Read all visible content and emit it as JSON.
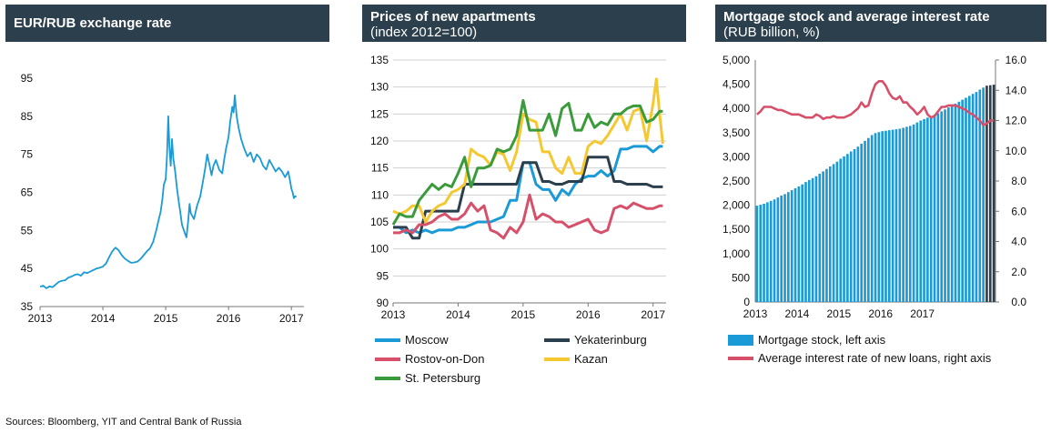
{
  "source": "Sources: Bloomberg, YIT and Central Bank of Russia",
  "charts": [
    {
      "title": "EUR/RUB exchange rate",
      "subtitle": "",
      "chart_data": {
        "type": "line",
        "title": "EUR/RUB exchange rate",
        "x_ticks": [
          "2013",
          "2014",
          "2015",
          "2016",
          "2017"
        ],
        "y_ticks": [
          35,
          45,
          55,
          65,
          75,
          85,
          95
        ],
        "ylim": [
          35,
          95
        ],
        "xlim": [
          2013.0,
          2017.2
        ],
        "grid": false,
        "series": [
          {
            "color": "#1a9ad6",
            "x": [
              2013.0,
              2013.05,
              2013.1,
              2013.15,
              2013.2,
              2013.25,
              2013.3,
              2013.35,
              2013.4,
              2013.45,
              2013.5,
              2013.55,
              2013.6,
              2013.65,
              2013.7,
              2013.75,
              2013.8,
              2013.85,
              2013.9,
              2013.95,
              2014.0,
              2014.05,
              2014.1,
              2014.15,
              2014.2,
              2014.25,
              2014.3,
              2014.35,
              2014.4,
              2014.45,
              2014.5,
              2014.55,
              2014.6,
              2014.65,
              2014.7,
              2014.75,
              2014.8,
              2014.85,
              2014.88,
              2014.92,
              2014.95,
              2014.97,
              2015.0,
              2015.02,
              2015.04,
              2015.06,
              2015.08,
              2015.1,
              2015.12,
              2015.15,
              2015.18,
              2015.2,
              2015.23,
              2015.26,
              2015.3,
              2015.33,
              2015.36,
              2015.38,
              2015.4,
              2015.45,
              2015.5,
              2015.55,
              2015.6,
              2015.63,
              2015.66,
              2015.7,
              2015.73,
              2015.76,
              2015.8,
              2015.85,
              2015.9,
              2015.93,
              2015.96,
              2016.0,
              2016.03,
              2016.06,
              2016.08,
              2016.1,
              2016.13,
              2016.16,
              2016.2,
              2016.25,
              2016.3,
              2016.35,
              2016.4,
              2016.45,
              2016.5,
              2016.55,
              2016.6,
              2016.65,
              2016.7,
              2016.75,
              2016.8,
              2016.85,
              2016.9,
              2016.95,
              2016.98,
              2017.0,
              2017.02,
              2017.04,
              2017.06,
              2017.08
            ],
            "y": [
              40.2,
              40.5,
              39.8,
              40.3,
              40.1,
              40.8,
              41.5,
              41.8,
              41.9,
              42.6,
              42.9,
              43.3,
              43.5,
              43.1,
              44.0,
              43.8,
              44.2,
              44.6,
              45.0,
              45.2,
              45.5,
              46.3,
              48.0,
              49.5,
              50.5,
              49.8,
              48.5,
              47.6,
              47.0,
              46.5,
              46.6,
              46.8,
              47.5,
              48.5,
              49.5,
              50.3,
              52.0,
              55.0,
              57.2,
              60.0,
              63.5,
              67.0,
              68.5,
              74.5,
              85.0,
              77.0,
              72.0,
              79.0,
              74.0,
              70.5,
              66.0,
              63.5,
              60.0,
              56.5,
              54.5,
              53.2,
              58.0,
              62.0,
              59.5,
              58.0,
              61.5,
              64.0,
              68.5,
              71.5,
              75.0,
              72.0,
              69.5,
              72.0,
              73.5,
              71.0,
              70.0,
              73.5,
              76.5,
              79.5,
              84.0,
              87.5,
              86.0,
              90.5,
              85.0,
              82.0,
              79.0,
              76.5,
              74.5,
              75.5,
              73.0,
              75.0,
              74.0,
              72.0,
              71.0,
              73.5,
              72.0,
              70.5,
              71.5,
              70.5,
              69.0,
              70.5,
              68.0,
              66.0,
              65.0,
              63.5,
              64.0,
              63.8
            ]
          }
        ]
      }
    },
    {
      "title": "Prices of new apartments",
      "subtitle": "(index 2012=100)",
      "chart_data": {
        "type": "line",
        "title": "Prices of new apartments",
        "subtitle": "(index 2012=100)",
        "x_ticks": [
          "2013",
          "2014",
          "2015",
          "2016",
          "2017"
        ],
        "y_ticks": [
          90,
          95,
          100,
          105,
          110,
          115,
          120,
          125,
          130,
          135
        ],
        "ylim": [
          90,
          135
        ],
        "xlim": [
          2013.0,
          2017.2
        ],
        "grid": true,
        "series": [
          {
            "name": "Moscow",
            "color": "#1a9ad6",
            "x": [
              2013.0,
              2013.1,
              2013.2,
              2013.3,
              2013.4,
              2013.5,
              2013.6,
              2013.7,
              2013.8,
              2013.9,
              2014.0,
              2014.1,
              2014.2,
              2014.3,
              2014.4,
              2014.5,
              2014.6,
              2014.7,
              2014.8,
              2014.9,
              2015.0,
              2015.1,
              2015.2,
              2015.3,
              2015.4,
              2015.5,
              2015.6,
              2015.7,
              2015.8,
              2015.9,
              2016.0,
              2016.1,
              2016.2,
              2016.3,
              2016.4,
              2016.5,
              2016.6,
              2016.7,
              2016.8,
              2016.9,
              2017.0,
              2017.1,
              2017.15
            ],
            "y": [
              104.0,
              104.0,
              103.0,
              103.5,
              103.0,
              103.5,
              103.0,
              103.5,
              103.5,
              103.5,
              104.0,
              104.0,
              104.5,
              105.0,
              105.0,
              105.0,
              105.5,
              106.0,
              109.0,
              109.0,
              116.0,
              116.0,
              112.0,
              111.0,
              111.0,
              109.0,
              111.0,
              110.0,
              112.0,
              113.0,
              113.5,
              113.5,
              114.5,
              113.5,
              114.5,
              118.5,
              118.5,
              119.0,
              119.0,
              119.0,
              118.0,
              119.0,
              119.0
            ]
          },
          {
            "name": "Yekaterinburg",
            "color": "#2b3f4d",
            "x": [
              2013.0,
              2013.1,
              2013.2,
              2013.3,
              2013.4,
              2013.5,
              2013.6,
              2013.7,
              2013.8,
              2013.9,
              2014.0,
              2014.1,
              2014.2,
              2014.3,
              2014.4,
              2014.5,
              2014.6,
              2014.7,
              2014.8,
              2014.9,
              2015.0,
              2015.1,
              2015.2,
              2015.3,
              2015.4,
              2015.5,
              2015.6,
              2015.7,
              2015.8,
              2015.9,
              2016.0,
              2016.1,
              2016.2,
              2016.3,
              2016.4,
              2016.5,
              2016.6,
              2016.7,
              2016.8,
              2016.9,
              2017.0,
              2017.1,
              2017.15
            ],
            "y": [
              104.0,
              104.0,
              104.0,
              102.0,
              102.0,
              107.0,
              107.0,
              107.0,
              107.0,
              107.0,
              107.0,
              112.0,
              112.0,
              112.0,
              112.0,
              112.0,
              112.0,
              112.0,
              112.0,
              112.0,
              116.0,
              116.0,
              116.0,
              112.5,
              112.5,
              112.0,
              112.0,
              112.5,
              112.5,
              112.5,
              117.0,
              117.0,
              117.0,
              117.0,
              112.5,
              112.5,
              112.0,
              112.0,
              112.0,
              112.0,
              111.5,
              111.5,
              111.5
            ]
          },
          {
            "name": "Rostov-on-Don",
            "color": "#d6506a",
            "x": [
              2013.0,
              2013.1,
              2013.2,
              2013.3,
              2013.4,
              2013.5,
              2013.6,
              2013.7,
              2013.8,
              2013.9,
              2014.0,
              2014.1,
              2014.2,
              2014.3,
              2014.4,
              2014.5,
              2014.6,
              2014.7,
              2014.8,
              2014.9,
              2015.0,
              2015.1,
              2015.2,
              2015.3,
              2015.4,
              2015.5,
              2015.6,
              2015.7,
              2015.8,
              2015.9,
              2016.0,
              2016.1,
              2016.2,
              2016.3,
              2016.4,
              2016.5,
              2016.6,
              2016.7,
              2016.8,
              2016.9,
              2017.0,
              2017.1,
              2017.15
            ],
            "y": [
              103.0,
              103.0,
              103.5,
              103.0,
              104.5,
              104.5,
              105.0,
              106.0,
              106.5,
              105.5,
              105.5,
              106.5,
              108.5,
              107.0,
              108.0,
              103.5,
              103.0,
              102.0,
              104.0,
              103.0,
              105.0,
              110.0,
              105.5,
              106.5,
              106.0,
              105.0,
              105.0,
              104.0,
              104.5,
              105.0,
              105.5,
              103.5,
              103.0,
              103.5,
              107.5,
              108.0,
              107.5,
              108.5,
              108.0,
              107.5,
              107.5,
              108.0,
              108.0
            ]
          },
          {
            "name": "Kazan",
            "color": "#f5c832",
            "x": [
              2013.0,
              2013.1,
              2013.2,
              2013.3,
              2013.4,
              2013.5,
              2013.6,
              2013.7,
              2013.8,
              2013.9,
              2014.0,
              2014.1,
              2014.2,
              2014.3,
              2014.4,
              2014.5,
              2014.6,
              2014.7,
              2014.8,
              2014.9,
              2015.0,
              2015.1,
              2015.2,
              2015.3,
              2015.4,
              2015.5,
              2015.6,
              2015.7,
              2015.8,
              2015.9,
              2016.0,
              2016.1,
              2016.2,
              2016.3,
              2016.4,
              2016.5,
              2016.6,
              2016.7,
              2016.8,
              2016.9,
              2017.0,
              2017.05,
              2017.1,
              2017.15
            ],
            "y": [
              107.0,
              106.5,
              107.0,
              108.0,
              108.0,
              105.0,
              107.0,
              108.0,
              108.5,
              110.5,
              111.0,
              112.0,
              118.5,
              117.5,
              117.0,
              115.5,
              118.0,
              117.5,
              114.5,
              118.0,
              125.0,
              124.0,
              123.5,
              118.0,
              118.0,
              115.0,
              114.0,
              117.0,
              114.0,
              114.0,
              119.0,
              120.0,
              119.5,
              121.0,
              123.0,
              125.0,
              122.0,
              125.5,
              126.0,
              120.0,
              127.0,
              131.5,
              125.0,
              119.5
            ]
          },
          {
            "name": "St. Petersburg",
            "color": "#3b9a3a",
            "x": [
              2013.0,
              2013.1,
              2013.2,
              2013.3,
              2013.4,
              2013.5,
              2013.6,
              2013.7,
              2013.8,
              2013.9,
              2014.0,
              2014.1,
              2014.2,
              2014.3,
              2014.4,
              2014.5,
              2014.6,
              2014.7,
              2014.8,
              2014.9,
              2015.0,
              2015.1,
              2015.2,
              2015.3,
              2015.4,
              2015.5,
              2015.6,
              2015.7,
              2015.8,
              2015.9,
              2016.0,
              2016.1,
              2016.2,
              2016.3,
              2016.4,
              2016.5,
              2016.6,
              2016.7,
              2016.8,
              2016.9,
              2017.0,
              2017.1,
              2017.15
            ],
            "y": [
              104.5,
              106.5,
              106.0,
              106.0,
              109.0,
              110.5,
              112.0,
              111.0,
              112.0,
              111.5,
              114.0,
              117.0,
              111.5,
              115.0,
              115.0,
              115.5,
              118.5,
              118.0,
              118.5,
              121.0,
              127.5,
              122.0,
              122.0,
              122.0,
              125.0,
              121.0,
              126.0,
              127.0,
              122.0,
              122.0,
              125.0,
              122.5,
              123.5,
              123.0,
              125.0,
              125.0,
              126.0,
              126.5,
              126.5,
              123.5,
              124.0,
              125.5,
              125.5
            ]
          }
        ]
      }
    },
    {
      "title": "Mortgage stock and average interest rate",
      "subtitle": "(RUB billion, %)",
      "chart_data": {
        "type": "bar",
        "title": "Mortgage stock and average interest rate",
        "subtitle": "(RUB billion, %)",
        "x_ticks": [
          "2013",
          "2014",
          "2015",
          "2016",
          "2017"
        ],
        "y_ticks": [
          "0",
          "500",
          "1,000",
          "1,500",
          "2,000",
          "2,500",
          "3,000",
          "3,500",
          "4,000",
          "4,500",
          "5,000"
        ],
        "y2_ticks": [
          "0.0",
          "2.0",
          "4.0",
          "6.0",
          "8.0",
          "10.0",
          "12.0",
          "14.0",
          "16.0"
        ],
        "ylim": [
          0,
          5000
        ],
        "y2lim": [
          0,
          16
        ],
        "grid": false,
        "legend": [
          "Mortgage stock, left axis",
          "Average interest rate of new loans, right axis"
        ],
        "bar_color": "#1a9ad6",
        "bar_dark_color": "#2b3f4d",
        "line_color": "#d6506a",
        "mortgage_stock": [
          1990,
          2010,
          2030,
          2060,
          2090,
          2120,
          2160,
          2200,
          2230,
          2270,
          2310,
          2350,
          2390,
          2430,
          2480,
          2520,
          2560,
          2600,
          2650,
          2700,
          2750,
          2800,
          2850,
          2900,
          2960,
          3010,
          3060,
          3110,
          3160,
          3210,
          3270,
          3330,
          3390,
          3450,
          3490,
          3510,
          3530,
          3540,
          3550,
          3560,
          3570,
          3580,
          3600,
          3620,
          3640,
          3670,
          3710,
          3750,
          3780,
          3810,
          3840,
          3870,
          3900,
          3940,
          3980,
          4020,
          4060,
          4100,
          4140,
          4180,
          4220,
          4260,
          4300,
          4340,
          4390,
          4430,
          4470,
          4480,
          4490
        ],
        "dark_bars_from": 66,
        "interest_rate": [
          12.4,
          12.6,
          12.9,
          12.9,
          12.9,
          12.8,
          12.7,
          12.7,
          12.6,
          12.5,
          12.4,
          12.4,
          12.4,
          12.3,
          12.2,
          12.2,
          12.2,
          12.4,
          12.3,
          12.1,
          12.2,
          12.2,
          12.3,
          12.2,
          12.2,
          12.2,
          12.3,
          12.4,
          12.6,
          12.8,
          13.2,
          12.9,
          13.0,
          13.8,
          14.4,
          14.6,
          14.6,
          14.3,
          13.8,
          13.5,
          13.4,
          13.6,
          13.2,
          13.2,
          12.9,
          12.7,
          12.4,
          12.6,
          12.9,
          12.4,
          12.2,
          12.3,
          12.6,
          12.9,
          12.9,
          13.0,
          13.0,
          13.0,
          12.9,
          12.8,
          12.7,
          12.5,
          12.4,
          12.2,
          12.0,
          11.7,
          11.8,
          12.0,
          12.0
        ]
      }
    }
  ]
}
